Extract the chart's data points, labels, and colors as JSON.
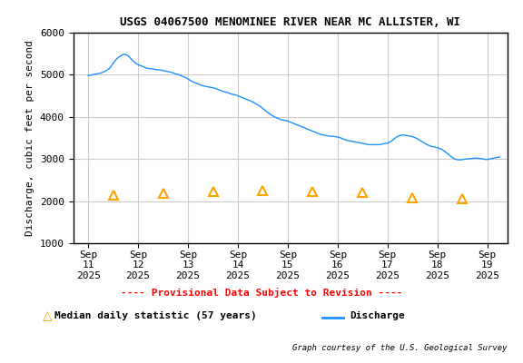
{
  "title": "USGS 04067500 MENOMINEE RIVER NEAR MC ALLISTER, WI",
  "ylabel": "Discharge, cubic feet per second",
  "credit": "Graph courtesy of the U.S. Geological Survey",
  "provisional_label": "---- Provisional Data Subject to Revision ----",
  "median_label": "Median daily statistic (57 years)",
  "discharge_label": "Discharge",
  "ylim": [
    1000,
    6000
  ],
  "yticks": [
    1000,
    2000,
    3000,
    4000,
    5000,
    6000
  ],
  "bg_color": "#ffffff",
  "plot_bg_color": "#ffffff",
  "grid_color": "#cccccc",
  "line_color": "#1e90ff",
  "median_color": "#ffa500",
  "provisional_color": "#ff0000",
  "title_fontsize": 9,
  "axis_fontsize": 8,
  "tick_fontsize": 8,
  "median_x_days": [
    11.5,
    12.5,
    13.5,
    14.5,
    15.5,
    16.5,
    17.5,
    18.5
  ],
  "median_y": [
    2150,
    2190,
    2220,
    2250,
    2230,
    2200,
    2080,
    2060
  ],
  "discharge_x": [
    11.0,
    11.042,
    11.083,
    11.125,
    11.167,
    11.208,
    11.25,
    11.292,
    11.333,
    11.375,
    11.417,
    11.458,
    11.5,
    11.542,
    11.583,
    11.625,
    11.667,
    11.708,
    11.75,
    11.792,
    11.833,
    11.875,
    11.917,
    11.958,
    12.0,
    12.042,
    12.083,
    12.125,
    12.167,
    12.208,
    12.25,
    12.292,
    12.333,
    12.375,
    12.417,
    12.458,
    12.5,
    12.542,
    12.583,
    12.625,
    12.667,
    12.708,
    12.75,
    12.792,
    12.833,
    12.875,
    12.917,
    12.958,
    13.0,
    13.042,
    13.083,
    13.125,
    13.167,
    13.208,
    13.25,
    13.292,
    13.333,
    13.375,
    13.417,
    13.458,
    13.5,
    13.542,
    13.583,
    13.625,
    13.667,
    13.708,
    13.75,
    13.792,
    13.833,
    13.875,
    13.917,
    13.958,
    14.0,
    14.042,
    14.083,
    14.125,
    14.167,
    14.208,
    14.25,
    14.292,
    14.333,
    14.375,
    14.417,
    14.458,
    14.5,
    14.542,
    14.583,
    14.625,
    14.667,
    14.708,
    14.75,
    14.792,
    14.833,
    14.875,
    14.917,
    14.958,
    15.0,
    15.042,
    15.083,
    15.125,
    15.167,
    15.208,
    15.25,
    15.292,
    15.333,
    15.375,
    15.417,
    15.458,
    15.5,
    15.542,
    15.583,
    15.625,
    15.667,
    15.708,
    15.75,
    15.792,
    15.833,
    15.875,
    15.917,
    15.958,
    16.0,
    16.042,
    16.083,
    16.125,
    16.167,
    16.208,
    16.25,
    16.292,
    16.333,
    16.375,
    16.417,
    16.458,
    16.5,
    16.542,
    16.583,
    16.625,
    16.667,
    16.708,
    16.75,
    16.792,
    16.833,
    16.875,
    16.917,
    16.958,
    17.0,
    17.042,
    17.083,
    17.125,
    17.167,
    17.208,
    17.25,
    17.292,
    17.333,
    17.375,
    17.417,
    17.458,
    17.5,
    17.542,
    17.583,
    17.625,
    17.667,
    17.708,
    17.75,
    17.792,
    17.833,
    17.875,
    17.917,
    17.958,
    18.0,
    18.042,
    18.083,
    18.125,
    18.167,
    18.208,
    18.25,
    18.292,
    18.333,
    18.375,
    18.417,
    18.458,
    18.5,
    18.542,
    18.583,
    18.625,
    18.667,
    18.708,
    18.75,
    18.792,
    18.833,
    18.875,
    18.917,
    18.958,
    19.0,
    19.042,
    19.083,
    19.125,
    19.167,
    19.208,
    19.25
  ],
  "discharge_y": [
    4980,
    4990,
    5000,
    5010,
    5020,
    5030,
    5040,
    5060,
    5080,
    5110,
    5140,
    5200,
    5270,
    5340,
    5390,
    5430,
    5460,
    5490,
    5480,
    5460,
    5410,
    5360,
    5310,
    5270,
    5240,
    5220,
    5200,
    5180,
    5160,
    5150,
    5140,
    5140,
    5130,
    5120,
    5120,
    5110,
    5100,
    5090,
    5080,
    5070,
    5060,
    5040,
    5020,
    5010,
    4990,
    4970,
    4950,
    4930,
    4900,
    4870,
    4840,
    4820,
    4800,
    4780,
    4760,
    4740,
    4730,
    4720,
    4710,
    4700,
    4690,
    4680,
    4660,
    4640,
    4620,
    4600,
    4590,
    4580,
    4560,
    4540,
    4530,
    4520,
    4500,
    4480,
    4460,
    4440,
    4420,
    4400,
    4380,
    4360,
    4330,
    4300,
    4270,
    4240,
    4200,
    4160,
    4120,
    4080,
    4050,
    4020,
    3990,
    3970,
    3950,
    3930,
    3920,
    3910,
    3900,
    3880,
    3860,
    3840,
    3820,
    3800,
    3780,
    3760,
    3740,
    3720,
    3700,
    3680,
    3660,
    3640,
    3620,
    3600,
    3580,
    3570,
    3560,
    3550,
    3540,
    3540,
    3540,
    3530,
    3520,
    3510,
    3490,
    3470,
    3450,
    3440,
    3430,
    3420,
    3410,
    3400,
    3390,
    3380,
    3370,
    3360,
    3350,
    3340,
    3340,
    3340,
    3340,
    3340,
    3340,
    3350,
    3360,
    3370,
    3380,
    3400,
    3430,
    3470,
    3510,
    3540,
    3560,
    3570,
    3570,
    3560,
    3550,
    3540,
    3530,
    3510,
    3490,
    3460,
    3430,
    3400,
    3370,
    3340,
    3320,
    3300,
    3290,
    3280,
    3270,
    3250,
    3230,
    3200,
    3160,
    3120,
    3080,
    3040,
    3010,
    2990,
    2980,
    2980,
    2985,
    2995,
    3000,
    3005,
    3010,
    3015,
    3020,
    3020,
    3015,
    3010,
    3000,
    2990,
    2990,
    3000,
    3010,
    3020,
    3030,
    3040,
    3050
  ],
  "xtick_positions": [
    11,
    12,
    13,
    14,
    15,
    16,
    17,
    18,
    19
  ],
  "xlim": [
    10.7,
    19.4
  ]
}
